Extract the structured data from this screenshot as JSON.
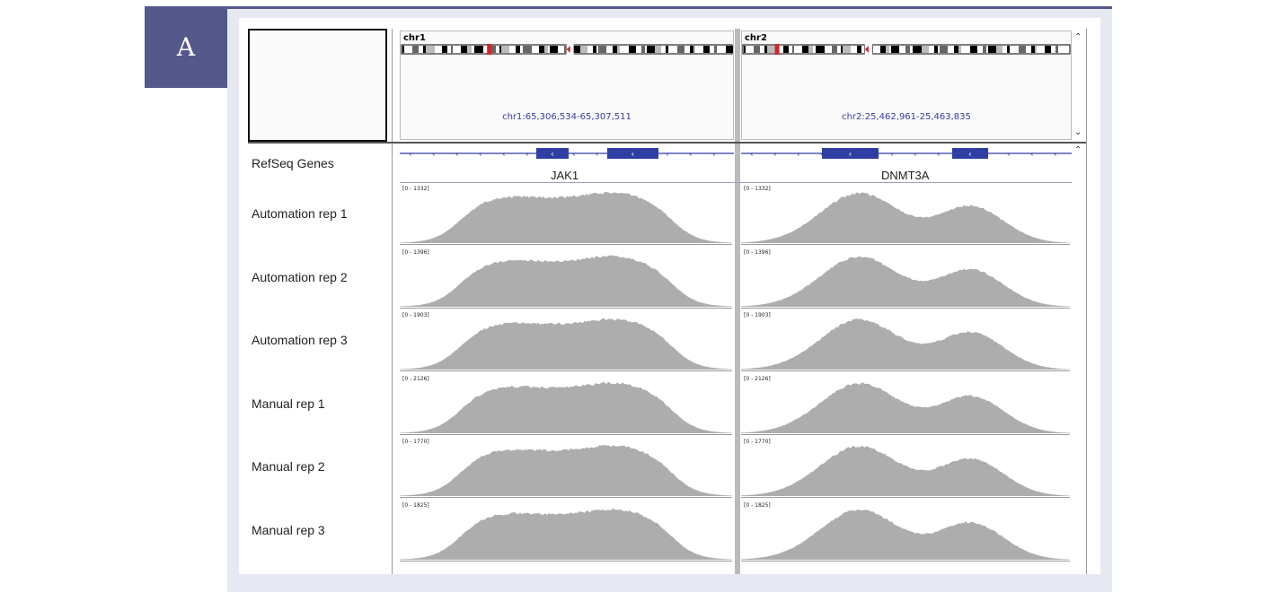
{
  "panel_label": "A",
  "ideogram": {
    "left": {
      "chr": "chr1",
      "locus": "chr1:65,306,534-65,307,511"
    },
    "right": {
      "chr": "chr2",
      "locus": "chr2:25,462,961-25,463,835"
    }
  },
  "genes": {
    "track_label": "RefSeq Genes",
    "left": "JAK1",
    "right": "DNMT3A"
  },
  "tracks": [
    {
      "label": "Automation rep 1",
      "left_range": "[0 - 1332]",
      "right_range": "[0 - 1332]"
    },
    {
      "label": "Automation rep 2",
      "left_range": "[0 - 1396]",
      "right_range": "[0 - 1396]"
    },
    {
      "label": "Automation rep 3",
      "left_range": "[0 - 1903]",
      "right_range": "[0 - 1903]"
    },
    {
      "label": "Manual rep 1",
      "left_range": "[0 - 2126]",
      "right_range": "[0 - 2126]"
    },
    {
      "label": "Manual rep 2",
      "left_range": "[0 - 1770]",
      "right_range": "[0 - 1770]"
    },
    {
      "label": "Manual rep 3",
      "left_range": "[0 - 1825]",
      "right_range": "[0 - 1825]"
    }
  ],
  "icons": {
    "scroll_up": "chevron-up-icon",
    "scroll_down": "chevron-down-icon"
  },
  "colors": {
    "badge": "#55588a",
    "gene": "#2f3ea3",
    "coverage": "#adadad",
    "locus_text": "#3a3aa0",
    "centromere": "#d42424"
  }
}
